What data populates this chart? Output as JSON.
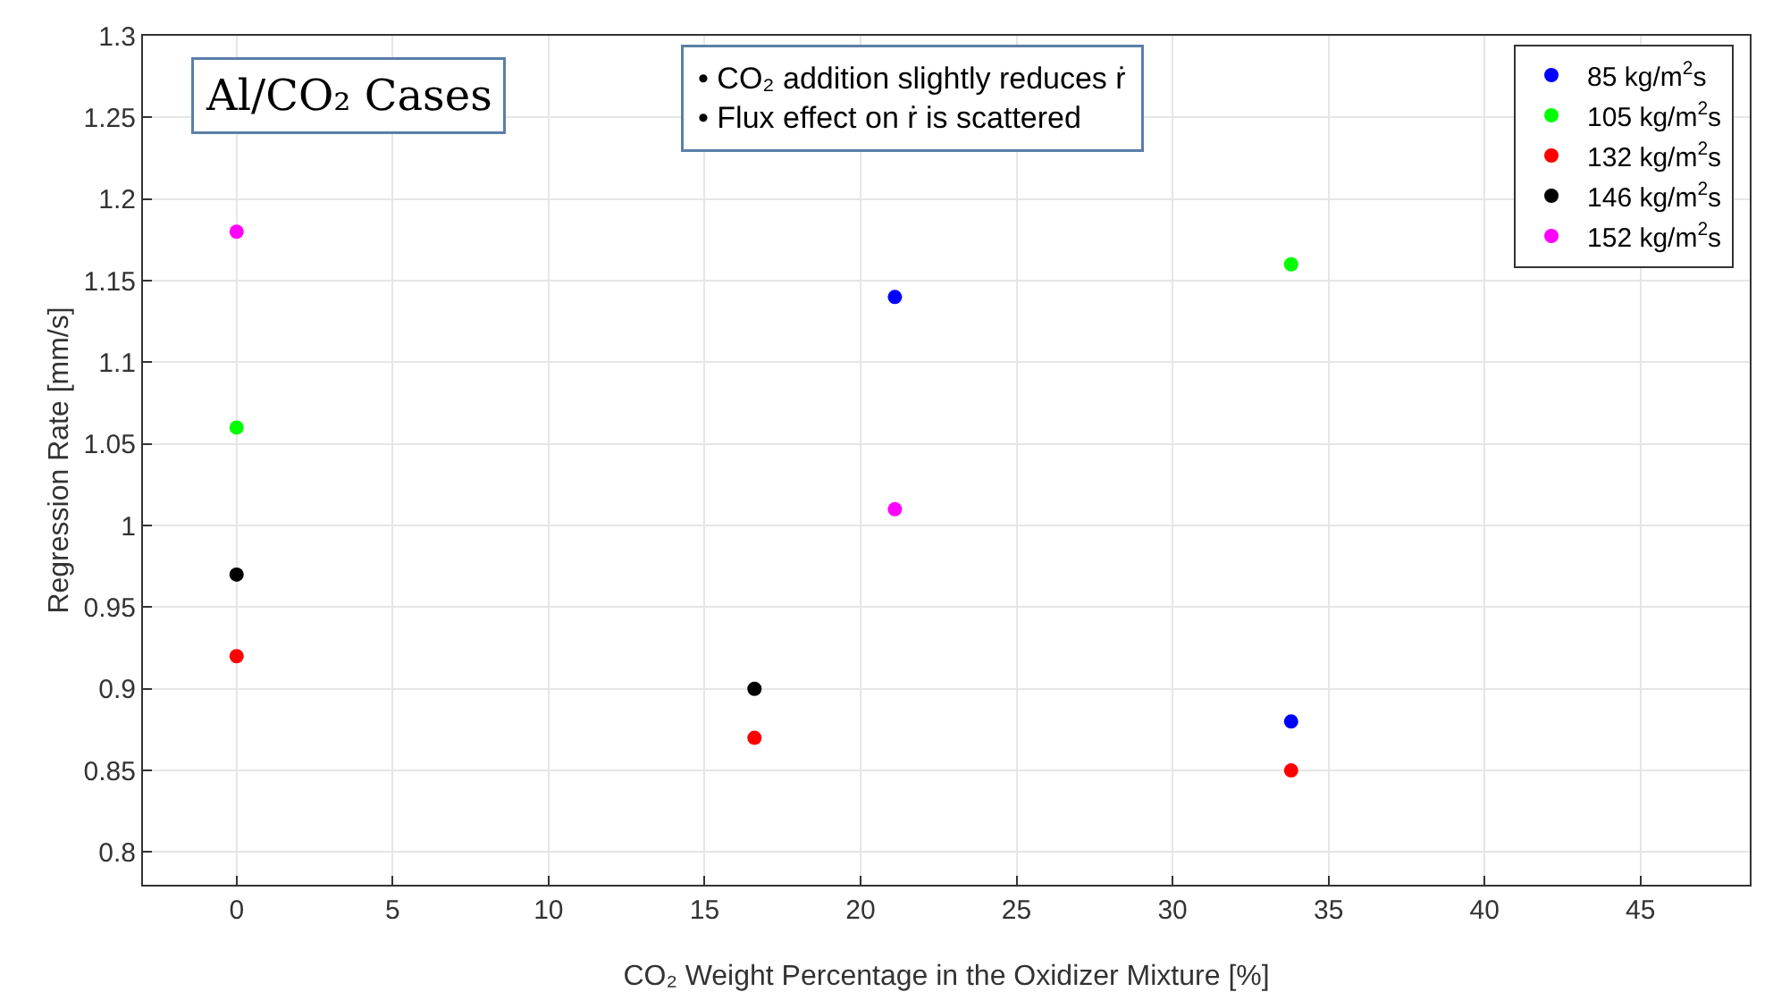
{
  "chart_data": {
    "type": "scatter",
    "xlabel": "CO₂ Weight Percentage in the Oxidizer Mixture [%]",
    "ylabel": "Regression Rate [mm/s]",
    "xlim": [
      -3,
      48.5
    ],
    "ylim": [
      0.78,
      1.3
    ],
    "xticks": [
      0,
      5,
      10,
      15,
      20,
      25,
      30,
      35,
      40,
      45
    ],
    "yticks": [
      0.8,
      0.85,
      0.9,
      0.95,
      1,
      1.05,
      1.1,
      1.15,
      1.2,
      1.25,
      1.3
    ],
    "grid": true,
    "legend": "top right",
    "marker": "circle",
    "annotations": [
      "Al/CO₂ Cases",
      "• CO₂ addition slightly reduces ṙ",
      "• Flux effect on ṙ is scattered"
    ],
    "series": [
      {
        "name": "85 kg/m$^{2}$s",
        "color": "#0000ff",
        "x": [
          21.1,
          33.8
        ],
        "values": [
          1.14,
          0.88
        ]
      },
      {
        "name": "105 kg/m$^{2}$s",
        "color": "#00ff00",
        "x": [
          0,
          33.8
        ],
        "values": [
          1.06,
          1.16
        ]
      },
      {
        "name": "132 kg/m$^{2}$s",
        "color": "#ff0000",
        "x": [
          0,
          16.6,
          33.8
        ],
        "values": [
          0.92,
          0.87,
          0.85
        ]
      },
      {
        "name": "146 kg/m$^{2}$s",
        "color": "#000000",
        "x": [
          0,
          16.6
        ],
        "values": [
          0.97,
          0.9
        ]
      },
      {
        "name": "152 kg/m$^{2}$s",
        "color": "#ff00ff",
        "x": [
          0,
          21.1
        ],
        "values": [
          1.18,
          1.01
        ]
      }
    ]
  }
}
